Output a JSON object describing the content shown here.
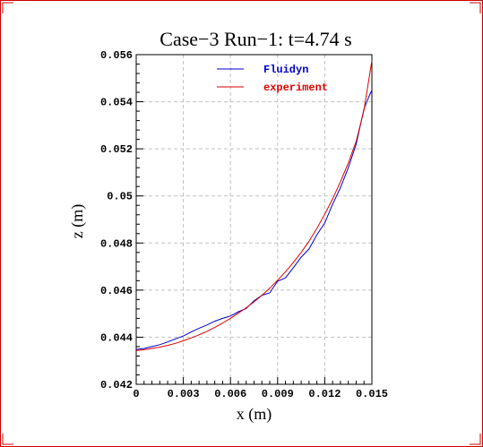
{
  "colors": {
    "border": "#cc0000",
    "grid": "#c0c0c0",
    "fluidyn": "#0000cc",
    "experiment": "#dd0000",
    "axis": "#000000"
  },
  "chart_data": {
    "type": "line",
    "title": "Case−3 Run−1: t=4.74 s",
    "xlabel": "x (m)",
    "ylabel": "z (m)",
    "xlim": [
      0,
      0.015
    ],
    "ylim": [
      0.042,
      0.056
    ],
    "xticks": [
      0,
      0.003,
      0.006,
      0.009,
      0.012,
      0.015
    ],
    "xtick_labels": [
      "0",
      "0.003",
      "0.006",
      "0.009",
      "0.012",
      "0.015"
    ],
    "yticks": [
      0.042,
      0.044,
      0.046,
      0.048,
      0.05,
      0.052,
      0.054,
      0.056
    ],
    "ytick_labels": [
      "0.042",
      "0.044",
      "0.046",
      "0.048",
      "0.05",
      "0.052",
      "0.054",
      "0.056"
    ],
    "grid": true,
    "legend_position": "top-right",
    "series": [
      {
        "name": "Fluidyn",
        "color": "#0000cc",
        "x": [
          0,
          0.0005,
          0.001,
          0.0015,
          0.002,
          0.0025,
          0.003,
          0.0035,
          0.004,
          0.0045,
          0.005,
          0.0055,
          0.006,
          0.0065,
          0.007,
          0.0075,
          0.008,
          0.0085,
          0.009,
          0.0095,
          0.01,
          0.0105,
          0.011,
          0.0115,
          0.012,
          0.0125,
          0.013,
          0.0135,
          0.014,
          0.0145,
          0.0148,
          0.015
        ],
        "y": [
          0.04348,
          0.04352,
          0.0436,
          0.04368,
          0.0438,
          0.04393,
          0.04405,
          0.04422,
          0.04438,
          0.04452,
          0.04468,
          0.0448,
          0.0449,
          0.04508,
          0.04522,
          0.04555,
          0.04578,
          0.04588,
          0.04638,
          0.04652,
          0.04695,
          0.0474,
          0.04775,
          0.04835,
          0.04885,
          0.04965,
          0.05035,
          0.0512,
          0.0522,
          0.0537,
          0.0542,
          0.0545
        ]
      },
      {
        "name": "experiment",
        "color": "#dd0000",
        "x": [
          0,
          0.0005,
          0.001,
          0.0015,
          0.002,
          0.0025,
          0.003,
          0.0035,
          0.004,
          0.0045,
          0.005,
          0.0055,
          0.006,
          0.0065,
          0.007,
          0.0075,
          0.008,
          0.0085,
          0.009,
          0.0095,
          0.01,
          0.0105,
          0.011,
          0.0115,
          0.012,
          0.0125,
          0.013,
          0.0135,
          0.014,
          0.0145,
          0.015
        ],
        "y": [
          0.04343,
          0.04347,
          0.04352,
          0.04358,
          0.04365,
          0.04374,
          0.04385,
          0.04397,
          0.0441,
          0.04425,
          0.04442,
          0.0446,
          0.0448,
          0.04502,
          0.04525,
          0.0455,
          0.04578,
          0.04608,
          0.04642,
          0.04678,
          0.04717,
          0.0476,
          0.04808,
          0.04862,
          0.04922,
          0.04988,
          0.0506,
          0.0514,
          0.05232,
          0.05365,
          0.05575
        ]
      }
    ]
  }
}
